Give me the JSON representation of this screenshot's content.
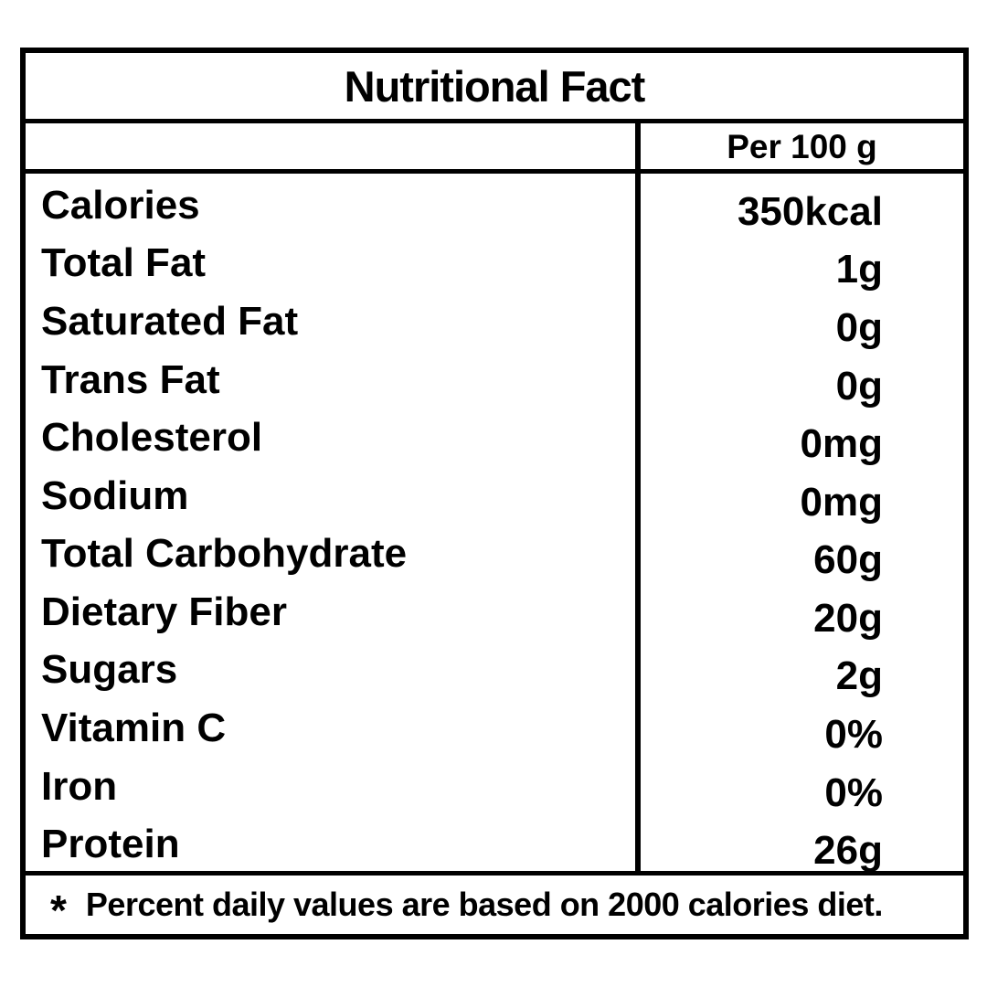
{
  "label": {
    "title": "Nutritional Fact",
    "column_header": "Per 100 g",
    "rows": [
      {
        "nutrient": "Calories",
        "amount": "350kcal"
      },
      {
        "nutrient": "Total Fat",
        "amount": "1g"
      },
      {
        "nutrient": "Saturated Fat",
        "amount": "0g"
      },
      {
        "nutrient": "Trans Fat",
        "amount": "0g"
      },
      {
        "nutrient": "Cholesterol",
        "amount": "0mg"
      },
      {
        "nutrient": "Sodium",
        "amount": "0mg"
      },
      {
        "nutrient": "Total Carbohydrate",
        "amount": "60g"
      },
      {
        "nutrient": "Dietary Fiber",
        "amount": "20g"
      },
      {
        "nutrient": "Sugars",
        "amount": "2g"
      },
      {
        "nutrient": "Vitamin C",
        "amount": "0%"
      },
      {
        "nutrient": "Iron",
        "amount": "0%"
      },
      {
        "nutrient": "Protein",
        "amount": "26g"
      }
    ],
    "footnote_marker": "*",
    "footnote_text": "Percent daily values are based on 2000 calories diet."
  },
  "colors": {
    "border": "#000000",
    "text": "#000000",
    "background": "#ffffff"
  }
}
